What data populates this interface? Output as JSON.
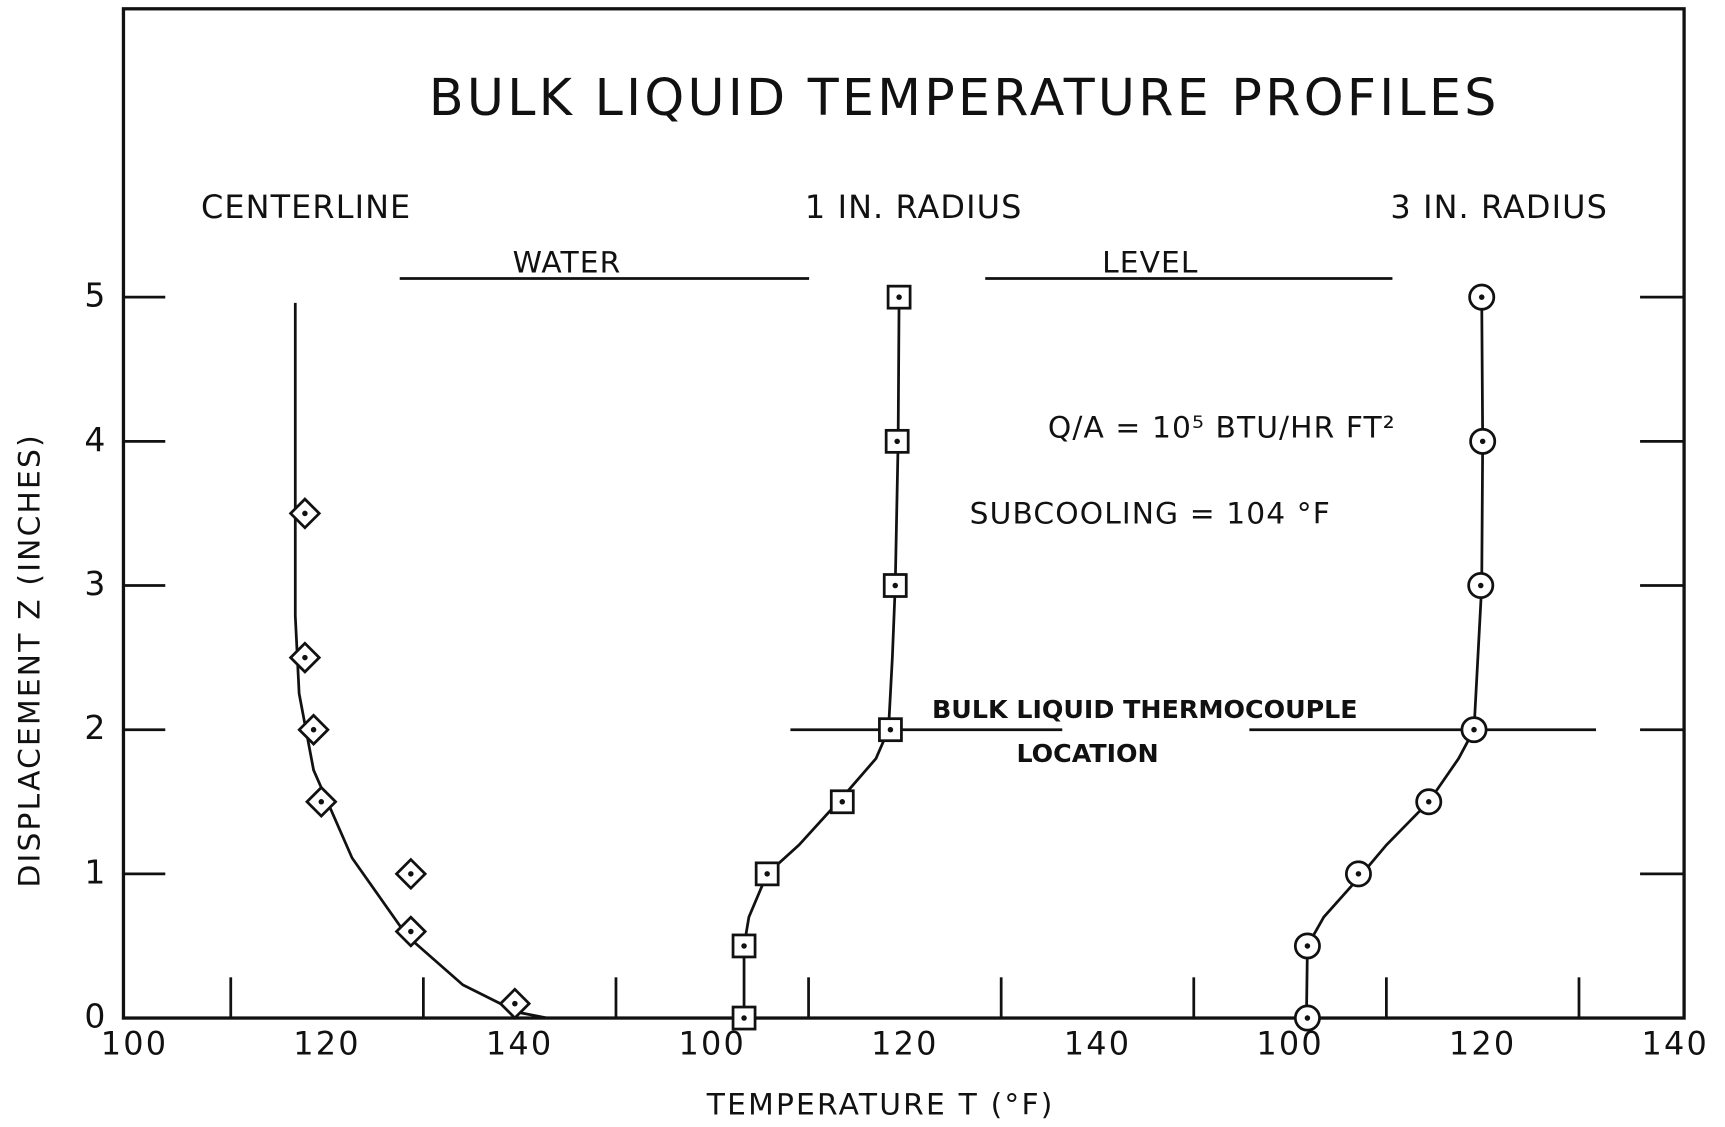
{
  "title": "BULK LIQUID TEMPERATURE PROFILES",
  "x_axis_label": "TEMPERATURE  T  (°F)",
  "y_axis": {
    "label": "DISPLACEMENT  Z  (INCHES)",
    "ylim": [
      0,
      7
    ],
    "yticks": [
      0,
      1,
      2,
      3,
      4,
      5
    ]
  },
  "annotations": {
    "water": "WATER",
    "level": "LEVEL",
    "heat_flux": "Q/A = 10⁵ BTU/HR FT²",
    "subcooling": "SUBCOOLING = 104 °F",
    "thermocouple": "BULK LIQUID  THERMOCOUPLE",
    "location": "LOCATION"
  },
  "chart_data": [
    {
      "type": "scatter",
      "title": "CENTERLINE",
      "marker": "diamond",
      "x": [
        117.7,
        117.7,
        118.6,
        119.4,
        128.7,
        128.7,
        139.5
      ],
      "y": [
        3.5,
        2.5,
        2.0,
        1.5,
        1.0,
        0.6,
        0.1
      ],
      "curve": {
        "x": [
          116.7,
          116.7,
          117.1,
          118.6,
          122.6,
          128.3,
          134.1,
          139.8,
          142.9
        ],
        "y": [
          4.96,
          2.79,
          2.25,
          1.72,
          1.11,
          0.57,
          0.23,
          0.04,
          0
        ]
      },
      "xlim": [
        100,
        160
      ],
      "xticks": [
        100,
        120,
        140
      ],
      "minor_xticks": [
        110,
        130,
        150
      ]
    },
    {
      "type": "scatter",
      "title": "1 IN. RADIUS",
      "marker": "square",
      "x": [
        119.4,
        119.2,
        119.0,
        118.5,
        113.5,
        105.7,
        103.3,
        103.3
      ],
      "y": [
        5.0,
        4.0,
        3.0,
        2.0,
        1.5,
        1.0,
        0.5,
        0
      ],
      "curve": {
        "x": [
          119.4,
          119.3,
          119.0,
          118.7,
          118.3,
          117.0,
          113.5,
          109.0,
          105.7,
          103.8,
          103.3,
          103.3
        ],
        "y": [
          5.0,
          4.0,
          3.0,
          2.5,
          2.0,
          1.8,
          1.53,
          1.2,
          1.0,
          0.7,
          0.5,
          0
        ]
      },
      "xlim": [
        100,
        160
      ],
      "xticks": [
        100,
        120,
        140
      ],
      "minor_xticks": [
        110,
        130,
        150
      ]
    },
    {
      "type": "scatter",
      "title": "3 IN. RADIUS",
      "marker": "circle",
      "x": [
        119.9,
        120.0,
        119.8,
        119.1,
        114.4,
        107.1,
        101.8,
        101.8
      ],
      "y": [
        5.0,
        4.0,
        3.0,
        2.0,
        1.5,
        1.0,
        0.5,
        0
      ],
      "curve": {
        "x": [
          119.9,
          120.0,
          119.9,
          119.5,
          119.1,
          117.5,
          114.4,
          110.0,
          107.1,
          103.5,
          101.8,
          101.7
        ],
        "y": [
          5.0,
          4.0,
          3.0,
          2.5,
          2.0,
          1.8,
          1.5,
          1.2,
          0.97,
          0.7,
          0.5,
          0
        ]
      },
      "xlim": [
        100,
        140
      ],
      "xticks": [
        100,
        120,
        140
      ],
      "minor_xticks": [
        110,
        130
      ]
    }
  ]
}
